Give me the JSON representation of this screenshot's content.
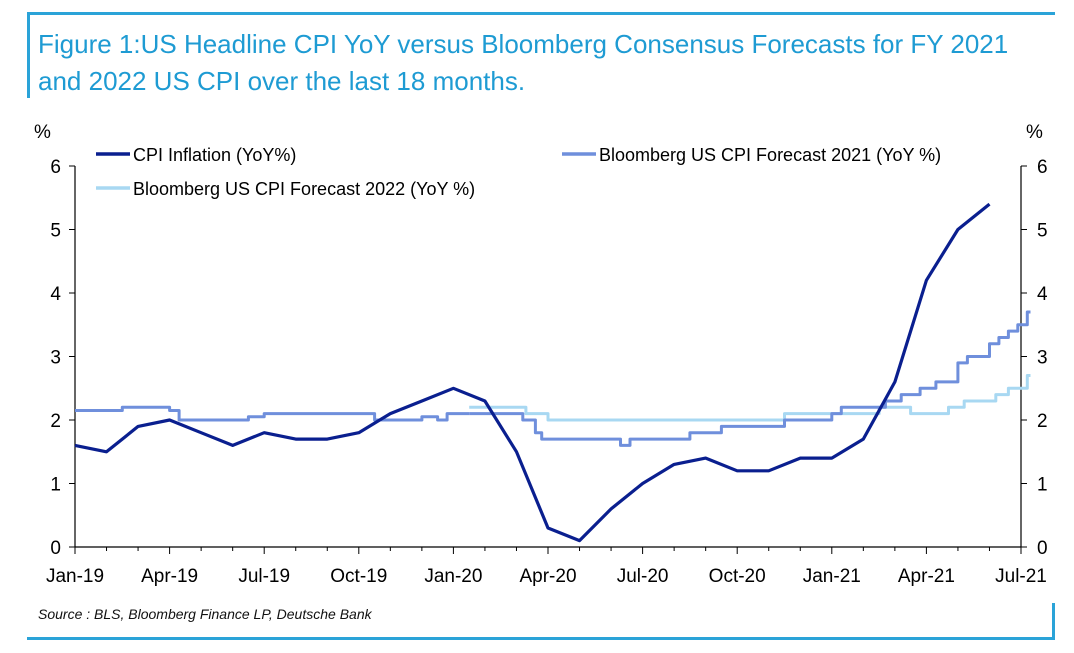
{
  "title": "Figure 1:US Headline CPI YoY versus Bloomberg Consensus Forecasts for FY 2021 and 2022 US CPI over the last 18 months.",
  "source": "Source : BLS, Bloomberg Finance LP, Deutsche Bank",
  "chart_data": {
    "type": "line",
    "y_unit_left": "%",
    "y_unit_right": "%",
    "ylim": [
      0,
      6
    ],
    "yticks": [
      "0",
      "1",
      "2",
      "3",
      "4",
      "5",
      "6"
    ],
    "x_ticks": [
      "Jan-19",
      "Apr-19",
      "Jul-19",
      "Oct-19",
      "Jan-20",
      "Apr-20",
      "Jul-20",
      "Oct-20",
      "Jan-21",
      "Apr-21",
      "Jul-21"
    ],
    "x_range_months": [
      0,
      30
    ],
    "grid": false,
    "legend_position": "top-left",
    "series": [
      {
        "name": "CPI Inflation (YoY%)",
        "color": "#0a1f8f",
        "points": [
          [
            0,
            1.6
          ],
          [
            1,
            1.5
          ],
          [
            2,
            1.9
          ],
          [
            3,
            2.0
          ],
          [
            4,
            1.8
          ],
          [
            5,
            1.6
          ],
          [
            6,
            1.8
          ],
          [
            7,
            1.7
          ],
          [
            8,
            1.7
          ],
          [
            9,
            1.8
          ],
          [
            10,
            2.1
          ],
          [
            11,
            2.3
          ],
          [
            12,
            2.5
          ],
          [
            13,
            2.3
          ],
          [
            14,
            1.5
          ],
          [
            15,
            0.3
          ],
          [
            16,
            0.1
          ],
          [
            17,
            0.6
          ],
          [
            18,
            1.0
          ],
          [
            19,
            1.3
          ],
          [
            20,
            1.4
          ],
          [
            21,
            1.2
          ],
          [
            22,
            1.2
          ],
          [
            23,
            1.4
          ],
          [
            24,
            1.4
          ],
          [
            25,
            1.7
          ],
          [
            26,
            2.6
          ],
          [
            27,
            4.2
          ],
          [
            28,
            5.0
          ],
          [
            29,
            5.4
          ]
        ]
      },
      {
        "name": "Bloomberg US CPI  Forecast 2021 (YoY %)",
        "color": "#6f8fdc",
        "points": [
          [
            12.5,
            2.1
          ],
          [
            13.6,
            2.1
          ],
          [
            14.2,
            2.0
          ],
          [
            14.6,
            1.8
          ],
          [
            14.8,
            1.7
          ],
          [
            15.5,
            1.7
          ],
          [
            16.0,
            1.7
          ],
          [
            16.5,
            1.7
          ],
          [
            17.3,
            1.6
          ],
          [
            17.6,
            1.7
          ],
          [
            18.3,
            1.7
          ],
          [
            19.0,
            1.7
          ],
          [
            19.5,
            1.8
          ],
          [
            20.0,
            1.8
          ],
          [
            20.5,
            1.9
          ],
          [
            21.0,
            1.9
          ],
          [
            22.0,
            1.9
          ],
          [
            22.5,
            2.0
          ],
          [
            23.5,
            2.0
          ],
          [
            24.0,
            2.1
          ],
          [
            24.3,
            2.2
          ],
          [
            25.0,
            2.2
          ],
          [
            25.3,
            2.2
          ],
          [
            25.7,
            2.3
          ],
          [
            26.2,
            2.4
          ],
          [
            26.8,
            2.5
          ],
          [
            27.3,
            2.6
          ],
          [
            27.8,
            2.6
          ],
          [
            28.0,
            2.9
          ],
          [
            28.3,
            3.0
          ],
          [
            28.7,
            3.0
          ],
          [
            29.0,
            3.2
          ],
          [
            29.3,
            3.3
          ],
          [
            29.6,
            3.4
          ],
          [
            29.9,
            3.5
          ],
          [
            30.1,
            3.5
          ],
          [
            30.2,
            3.7
          ],
          [
            30.3,
            3.7
          ]
        ]
      },
      {
        "name": "Bloomberg US CPI  Forecast 2022 (YoY %)",
        "color": "#a8d8f2",
        "points": [
          [
            12.5,
            2.2
          ],
          [
            13.6,
            2.2
          ],
          [
            14.3,
            2.1
          ],
          [
            15.0,
            2.0
          ],
          [
            19.0,
            2.0
          ],
          [
            19.5,
            2.0
          ],
          [
            22.0,
            2.0
          ],
          [
            22.5,
            2.1
          ],
          [
            25.0,
            2.1
          ],
          [
            25.5,
            2.2
          ],
          [
            26.2,
            2.2
          ],
          [
            26.5,
            2.1
          ],
          [
            27.3,
            2.1
          ],
          [
            27.7,
            2.2
          ],
          [
            28.2,
            2.3
          ],
          [
            28.8,
            2.3
          ],
          [
            29.2,
            2.4
          ],
          [
            29.6,
            2.5
          ],
          [
            30.0,
            2.5
          ],
          [
            30.2,
            2.7
          ],
          [
            30.3,
            2.7
          ]
        ]
      },
      {
        "name": "",
        "color": "#6f8fdc",
        "points": [
          [
            0,
            2.15
          ],
          [
            1.4,
            2.15
          ],
          [
            1.5,
            2.2
          ],
          [
            2.5,
            2.2
          ],
          [
            3.0,
            2.15
          ],
          [
            3.3,
            2.0
          ],
          [
            4.5,
            2.0
          ],
          [
            5.5,
            2.05
          ],
          [
            6.0,
            2.1
          ],
          [
            6.5,
            2.1
          ],
          [
            7.0,
            2.1
          ],
          [
            8.0,
            2.1
          ],
          [
            9.0,
            2.1
          ],
          [
            9.3,
            2.1
          ],
          [
            9.5,
            2.0
          ],
          [
            10.5,
            2.0
          ],
          [
            11.0,
            2.05
          ],
          [
            11.5,
            2.0
          ],
          [
            11.8,
            2.1
          ],
          [
            12.5,
            2.1
          ]
        ]
      }
    ]
  }
}
